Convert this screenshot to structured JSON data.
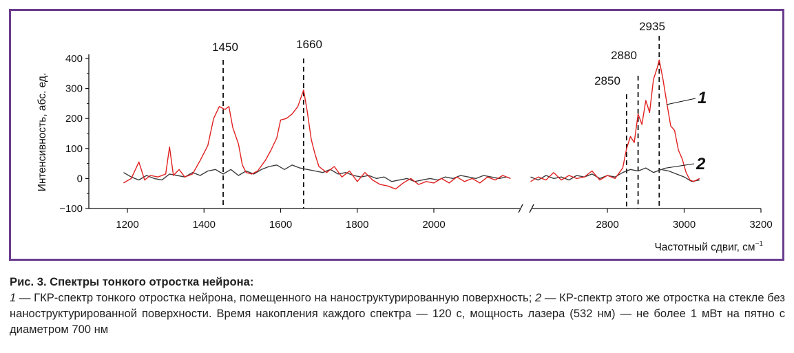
{
  "chart_data": {
    "type": "line",
    "ylabel": "Интенсивность, абс. ед.",
    "xlabel": "Частотный сдвиг, см",
    "xlabel_sup": "−1",
    "ylim": [
      -100,
      450
    ],
    "yticks": [
      -100,
      0,
      100,
      200,
      300,
      400
    ],
    "xticks_left": [
      1200,
      1400,
      1600,
      1800,
      2000
    ],
    "xticks_right": [
      2800,
      3000,
      3200
    ],
    "axis_break": {
      "from": 2200,
      "to": 2600
    },
    "peaks": [
      {
        "label": "1450",
        "x": 1450
      },
      {
        "label": "1660",
        "x": 1660
      },
      {
        "label": "2850",
        "x": 2850
      },
      {
        "label": "2880",
        "x": 2880
      },
      {
        "label": "2935",
        "x": 2935
      }
    ],
    "series": [
      {
        "name": "1",
        "color": "#e02020",
        "points": [
          [
            1190,
            -15
          ],
          [
            1210,
            0
          ],
          [
            1230,
            55
          ],
          [
            1245,
            -5
          ],
          [
            1260,
            10
          ],
          [
            1280,
            5
          ],
          [
            1300,
            15
          ],
          [
            1310,
            105
          ],
          [
            1320,
            10
          ],
          [
            1335,
            30
          ],
          [
            1350,
            5
          ],
          [
            1370,
            15
          ],
          [
            1390,
            60
          ],
          [
            1410,
            110
          ],
          [
            1425,
            200
          ],
          [
            1440,
            240
          ],
          [
            1455,
            230
          ],
          [
            1465,
            240
          ],
          [
            1475,
            170
          ],
          [
            1490,
            115
          ],
          [
            1500,
            45
          ],
          [
            1510,
            20
          ],
          [
            1525,
            15
          ],
          [
            1540,
            25
          ],
          [
            1560,
            60
          ],
          [
            1575,
            95
          ],
          [
            1590,
            135
          ],
          [
            1600,
            195
          ],
          [
            1615,
            200
          ],
          [
            1630,
            215
          ],
          [
            1645,
            240
          ],
          [
            1660,
            295
          ],
          [
            1670,
            220
          ],
          [
            1680,
            130
          ],
          [
            1690,
            80
          ],
          [
            1700,
            40
          ],
          [
            1720,
            20
          ],
          [
            1740,
            40
          ],
          [
            1760,
            5
          ],
          [
            1780,
            25
          ],
          [
            1800,
            -10
          ],
          [
            1820,
            20
          ],
          [
            1840,
            -5
          ],
          [
            1860,
            -20
          ],
          [
            1880,
            -25
          ],
          [
            1900,
            -35
          ],
          [
            1920,
            -15
          ],
          [
            1940,
            0
          ],
          [
            1960,
            -20
          ],
          [
            1980,
            -10
          ],
          [
            2000,
            -15
          ],
          [
            2020,
            0
          ],
          [
            2040,
            -15
          ],
          [
            2060,
            5
          ],
          [
            2080,
            -10
          ],
          [
            2100,
            0
          ],
          [
            2120,
            -15
          ],
          [
            2140,
            5
          ],
          [
            2160,
            -5
          ],
          [
            2180,
            10
          ],
          [
            2200,
            0
          ],
          [
            2600,
            -10
          ],
          [
            2620,
            5
          ],
          [
            2640,
            -5
          ],
          [
            2660,
            20
          ],
          [
            2680,
            -5
          ],
          [
            2700,
            10
          ],
          [
            2720,
            0
          ],
          [
            2740,
            5
          ],
          [
            2760,
            25
          ],
          [
            2780,
            -5
          ],
          [
            2800,
            10
          ],
          [
            2820,
            0
          ],
          [
            2840,
            35
          ],
          [
            2850,
            100
          ],
          [
            2860,
            140
          ],
          [
            2870,
            120
          ],
          [
            2880,
            215
          ],
          [
            2890,
            180
          ],
          [
            2900,
            260
          ],
          [
            2910,
            220
          ],
          [
            2920,
            330
          ],
          [
            2930,
            370
          ],
          [
            2935,
            395
          ],
          [
            2945,
            330
          ],
          [
            2955,
            250
          ],
          [
            2965,
            175
          ],
          [
            2975,
            160
          ],
          [
            2985,
            95
          ],
          [
            2995,
            65
          ],
          [
            3005,
            20
          ],
          [
            3015,
            -5
          ],
          [
            3025,
            -10
          ],
          [
            3040,
            0
          ]
        ]
      },
      {
        "name": "2",
        "color": "#3a3a3a",
        "points": [
          [
            1190,
            20
          ],
          [
            1210,
            5
          ],
          [
            1230,
            -5
          ],
          [
            1250,
            10
          ],
          [
            1270,
            0
          ],
          [
            1290,
            -5
          ],
          [
            1310,
            15
          ],
          [
            1330,
            10
          ],
          [
            1350,
            5
          ],
          [
            1370,
            20
          ],
          [
            1390,
            10
          ],
          [
            1410,
            25
          ],
          [
            1430,
            30
          ],
          [
            1450,
            15
          ],
          [
            1470,
            30
          ],
          [
            1490,
            10
          ],
          [
            1510,
            25
          ],
          [
            1530,
            15
          ],
          [
            1550,
            30
          ],
          [
            1570,
            40
          ],
          [
            1590,
            45
          ],
          [
            1610,
            30
          ],
          [
            1630,
            45
          ],
          [
            1650,
            35
          ],
          [
            1670,
            30
          ],
          [
            1690,
            25
          ],
          [
            1710,
            20
          ],
          [
            1730,
            30
          ],
          [
            1750,
            15
          ],
          [
            1770,
            20
          ],
          [
            1790,
            10
          ],
          [
            1810,
            5
          ],
          [
            1830,
            10
          ],
          [
            1850,
            0
          ],
          [
            1870,
            5
          ],
          [
            1890,
            -10
          ],
          [
            1910,
            -5
          ],
          [
            1930,
            0
          ],
          [
            1950,
            -10
          ],
          [
            1970,
            -5
          ],
          [
            1990,
            0
          ],
          [
            2010,
            -5
          ],
          [
            2030,
            5
          ],
          [
            2050,
            0
          ],
          [
            2070,
            10
          ],
          [
            2090,
            5
          ],
          [
            2110,
            0
          ],
          [
            2130,
            10
          ],
          [
            2150,
            5
          ],
          [
            2170,
            0
          ],
          [
            2190,
            5
          ],
          [
            2200,
            0
          ],
          [
            2600,
            5
          ],
          [
            2620,
            -5
          ],
          [
            2640,
            10
          ],
          [
            2660,
            0
          ],
          [
            2680,
            5
          ],
          [
            2700,
            -5
          ],
          [
            2720,
            10
          ],
          [
            2740,
            5
          ],
          [
            2760,
            15
          ],
          [
            2780,
            0
          ],
          [
            2800,
            10
          ],
          [
            2820,
            5
          ],
          [
            2840,
            20
          ],
          [
            2860,
            30
          ],
          [
            2880,
            25
          ],
          [
            2900,
            35
          ],
          [
            2920,
            20
          ],
          [
            2940,
            30
          ],
          [
            2960,
            25
          ],
          [
            2980,
            15
          ],
          [
            3000,
            5
          ],
          [
            3020,
            -10
          ],
          [
            3040,
            -5
          ]
        ]
      }
    ]
  },
  "caption": {
    "title": "Рис. 3. Спектры тонкого отростка нейрона:",
    "n1": "1",
    "t1": " — ГКР-спектр тонкого отростка нейрона, помещенного на наноструктурированную поверхность; ",
    "n2": "2",
    "t2": " — КР-спектр этого же отростка на стекле без наноструктурированной поверхности. Время накопления каждого спектра — 120 с, мощность лазера (532 нм) — не более 1 мВт на пятно с диаметром 700 нм"
  }
}
